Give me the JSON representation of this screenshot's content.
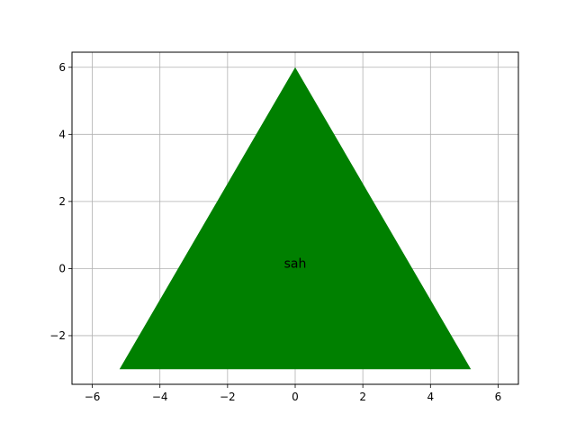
{
  "chart_data": {
    "type": "area",
    "xlim": [
      -6.6,
      6.6
    ],
    "ylim": [
      -3.45,
      6.45
    ],
    "grid": true,
    "xticks": [
      -6,
      -4,
      -2,
      0,
      2,
      4,
      6
    ],
    "yticks": [
      -2,
      0,
      2,
      4,
      6
    ],
    "xtick_labels": [
      "−6",
      "−4",
      "−2",
      "0",
      "2",
      "4",
      "6"
    ],
    "ytick_labels": [
      "−2",
      "0",
      "2",
      "4",
      "6"
    ],
    "polygon": {
      "points": [
        [
          0,
          6
        ],
        [
          -5.196,
          -3
        ],
        [
          5.196,
          -3
        ]
      ],
      "fill_color": "#008000"
    },
    "annotation": {
      "text": "sah",
      "x": 0,
      "y": 0
    },
    "colors": {
      "grid": "#b0b0b0",
      "axes": "#000000"
    }
  }
}
